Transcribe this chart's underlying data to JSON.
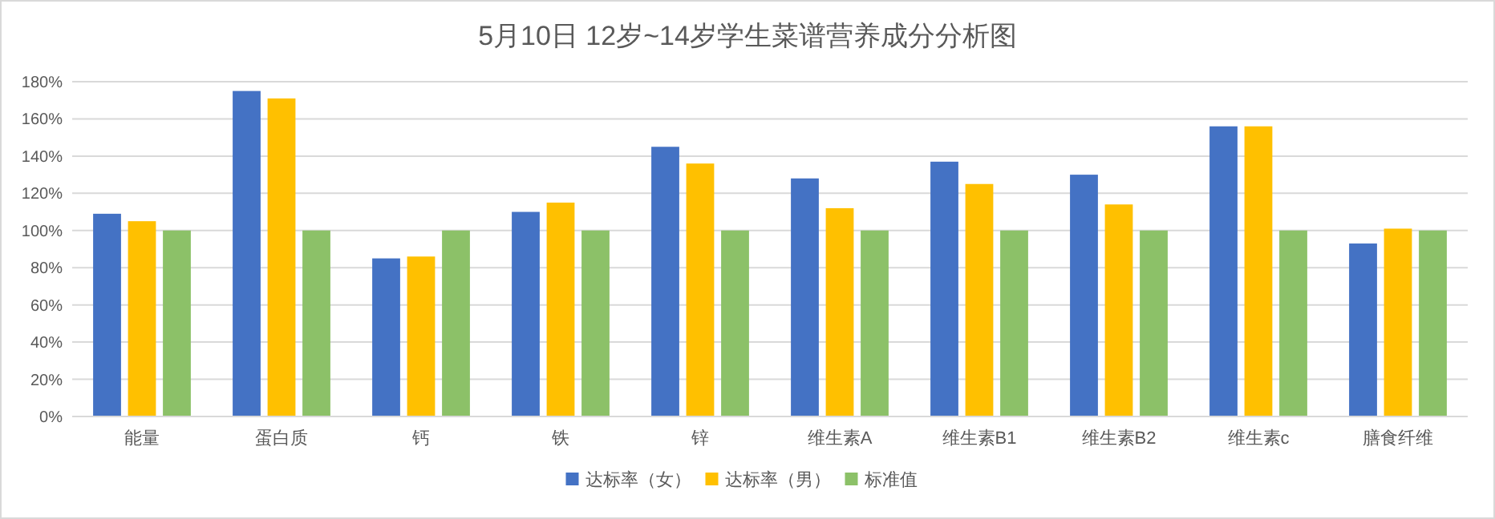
{
  "chart_data": {
    "type": "bar",
    "title": "5月10日 12岁~14岁学生菜谱营养成分分析图",
    "categories": [
      "能量",
      "蛋白质",
      "钙",
      "铁",
      "锌",
      "维生素A",
      "维生素B1",
      "维生素B2",
      "维生素c",
      "膳食纤维"
    ],
    "series": [
      {
        "name": "达标率（女）",
        "color": "#4472c4",
        "values": [
          109,
          175,
          85,
          110,
          145,
          128,
          137,
          130,
          156,
          93
        ]
      },
      {
        "name": "达标率（男）",
        "color": "#ffc000",
        "values": [
          105,
          171,
          86,
          115,
          136,
          112,
          125,
          114,
          156,
          101
        ]
      },
      {
        "name": "标准值",
        "color": "#8cc168",
        "values": [
          100,
          100,
          100,
          100,
          100,
          100,
          100,
          100,
          100,
          100
        ]
      }
    ],
    "ylim": [
      0,
      180
    ],
    "yticks": [
      {
        "value": 0,
        "label": "0%"
      },
      {
        "value": 20,
        "label": "20%"
      },
      {
        "value": 40,
        "label": "40%"
      },
      {
        "value": 60,
        "label": "60%"
      },
      {
        "value": 80,
        "label": "80%"
      },
      {
        "value": 100,
        "label": "100%"
      },
      {
        "value": 120,
        "label": "120%"
      },
      {
        "value": 140,
        "label": "140%"
      },
      {
        "value": 160,
        "label": "160%"
      },
      {
        "value": 180,
        "label": "180%"
      }
    ],
    "grid": "y",
    "legend": "bottom"
  }
}
